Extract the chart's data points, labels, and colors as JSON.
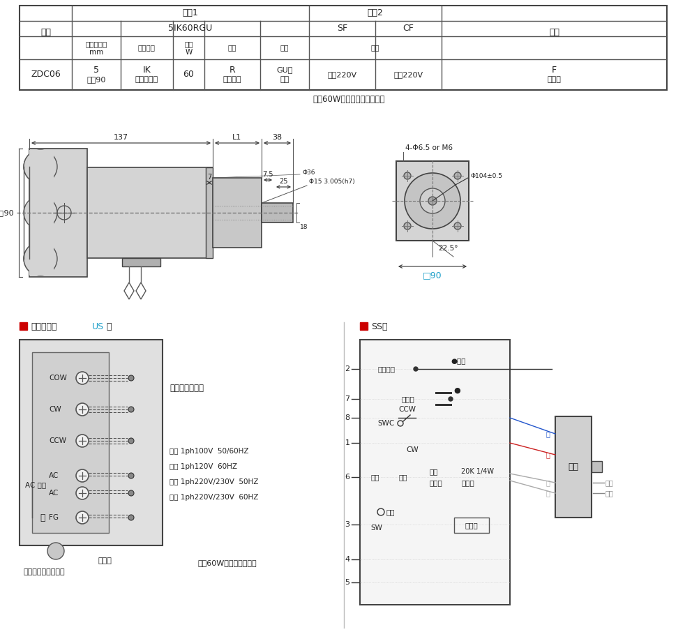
{
  "bg_color": "#ffffff",
  "table_note": "注：60W以上电机默认带风扇",
  "diagram_note": "注：60W以上默认带风扇",
  "wiring_us_label": "接线示意图",
  "wiring_us_type": "US",
  "wiring_us_xing": "型",
  "wiring_ss_label": "SS型",
  "red_sq_color": "#cc0000",
  "cyan_color": "#1a9ec8",
  "dim_color": "#333333",
  "light_gray": "#d4d4d4",
  "mid_gray": "#c0c0c0",
  "dark_gray": "#888888",
  "font_cn": "SimHei",
  "specs": {
    "row0_c1": "规格1",
    "row0_c2": "规格2",
    "row1_c1": "5IK60RGU",
    "row1_sf": "SF",
    "row1_cf": "CF",
    "row2_c1": "电动机尺寸",
    "row2_c1b": "mm",
    "row2_c2": "类型名称",
    "row2_c3": "功率",
    "row2_c3b": "W",
    "row2_c4": "功能",
    "row2_c5": "轴类",
    "row2_c6": "电压",
    "row2_c7": "配件",
    "row3_code": "ZDC06",
    "row3_c1": "5",
    "row3_c1b": "表示90",
    "row3_c2": "IK",
    "row3_c2b": "感应电动机",
    "row3_c3": "60",
    "row3_c4": "R",
    "row3_c4b": "调速功能",
    "row3_c5": "GU型",
    "row3_c5b": "齿轴",
    "row3_sf": "三相220V",
    "row3_cf": "单相220V",
    "row3_pj": "F",
    "row3_pjb": "带风扇",
    "daima": "代码"
  },
  "us_specs": [
    "单相 1ph100V  50/60HZ",
    "单相 1ph120V  60HZ",
    "单相 1ph220V/230V  50HZ",
    "单相 1ph220V/230V  60HZ"
  ],
  "us_terminals": [
    "COW",
    "CW",
    "CCW",
    "AC",
    "AC",
    "FG"
  ],
  "us_right_label": "切换电动机转向",
  "us_ac_label": "AC 电源",
  "us_ground_label": "接地线",
  "us_bottom_label": "对应电动机连接导线",
  "ss_nums": [
    "2",
    "7",
    "8",
    "1",
    "6",
    "3",
    "4",
    "5"
  ],
  "motor_label": "电机",
  "dim_137": "137",
  "dim_L1": "L1",
  "dim_38": "38",
  "dim_7": "7",
  "dim_75": "7.5",
  "dim_25": "25",
  "dim_phi15": "Φ15 3.005(h7)",
  "dim_phi36": "Φ36",
  "dim_18": "18",
  "dim_sq90_left": "□90",
  "dim_4phi": "4-Φ6.5 or M6",
  "dim_phi104": "Φ104±0.5",
  "dim_225": "22.5°",
  "dim_sq90_bot": "□90"
}
